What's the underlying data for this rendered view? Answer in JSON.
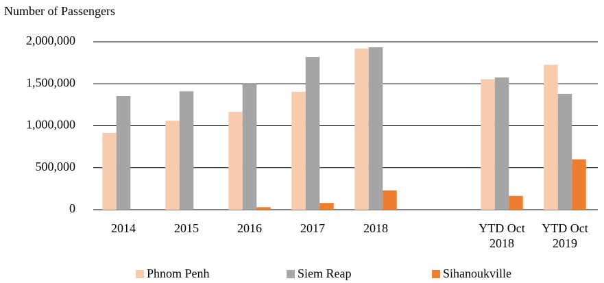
{
  "chart_data": {
    "type": "bar",
    "y_axis_label": "Number of Passengers",
    "categories": [
      "2014",
      "2015",
      "2016",
      "2017",
      "2018",
      null,
      "YTD Oct 2018",
      "YTD Oct 2019"
    ],
    "series": [
      {
        "name": "Phnom Penh",
        "color": "#f8cbad",
        "values": [
          915000,
          1060000,
          1165000,
          1405000,
          1920000,
          null,
          1555000,
          1725000
        ]
      },
      {
        "name": "Siem Reap",
        "color": "#a5a5a5",
        "values": [
          1355000,
          1410000,
          1500000,
          1820000,
          1935000,
          null,
          1575000,
          1380000
        ]
      },
      {
        "name": "Sihanoukville",
        "color": "#ed7d31",
        "values": [
          0,
          0,
          30000,
          80000,
          230000,
          null,
          165000,
          600000
        ]
      }
    ],
    "ylim": [
      0,
      2000000
    ],
    "yticks": [
      0,
      {
        "value": 500000,
        "label": "500,000"
      },
      {
        "value": 1000000,
        "label": "1,000,000"
      },
      {
        "value": 1500000,
        "label": "1,500,000"
      },
      {
        "value": 2000000,
        "label": "2,000,000"
      }
    ],
    "grid": true,
    "legend": "bottom"
  }
}
